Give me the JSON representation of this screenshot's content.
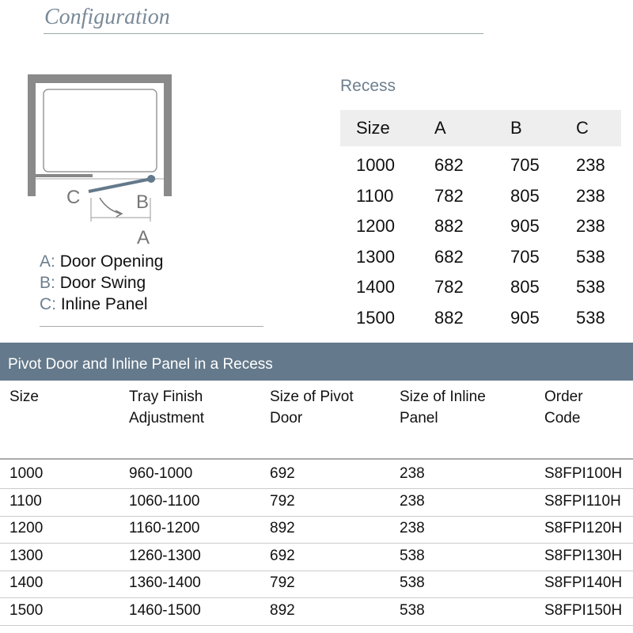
{
  "title": "Configuration",
  "diagram": {
    "labels": {
      "a": "A",
      "b": "B",
      "c": "C"
    },
    "accent": "#64798b"
  },
  "legend": [
    {
      "key": "A:",
      "text": "Door Opening"
    },
    {
      "key": "B:",
      "text": "Door Swing"
    },
    {
      "key": "C:",
      "text": "Inline Panel"
    }
  ],
  "recess": {
    "title": "Recess",
    "headers": [
      "Size",
      "A",
      "B",
      "C"
    ],
    "rows": [
      [
        "1000",
        "682",
        "705",
        "238"
      ],
      [
        "1100",
        "782",
        "805",
        "238"
      ],
      [
        "1200",
        "882",
        "905",
        "238"
      ],
      [
        "1300",
        "682",
        "705",
        "538"
      ],
      [
        "1400",
        "782",
        "805",
        "538"
      ],
      [
        "1500",
        "882",
        "905",
        "538"
      ]
    ]
  },
  "product": {
    "title": "Pivot Door and Inline Panel in a Recess",
    "headers": [
      [
        "Size",
        ""
      ],
      [
        "Tray Finish",
        "Adjustment"
      ],
      [
        "Size of Pivot",
        "Door"
      ],
      [
        "Size of Inline",
        "Panel"
      ],
      [
        "Order",
        "Code"
      ]
    ],
    "rows": [
      [
        "1000",
        "960-1000",
        "692",
        "238",
        "S8FPI100H"
      ],
      [
        "1100",
        "1060-1100",
        "792",
        "238",
        "S8FPI110H"
      ],
      [
        "1200",
        "1160-1200",
        "892",
        "238",
        "S8FPI120H"
      ],
      [
        "1300",
        "1260-1300",
        "692",
        "538",
        "S8FPI130H"
      ],
      [
        "1400",
        "1360-1400",
        "792",
        "538",
        "S8FPI140H"
      ],
      [
        "1500",
        "1460-1500",
        "892",
        "538",
        "S8FPI150H"
      ]
    ]
  }
}
